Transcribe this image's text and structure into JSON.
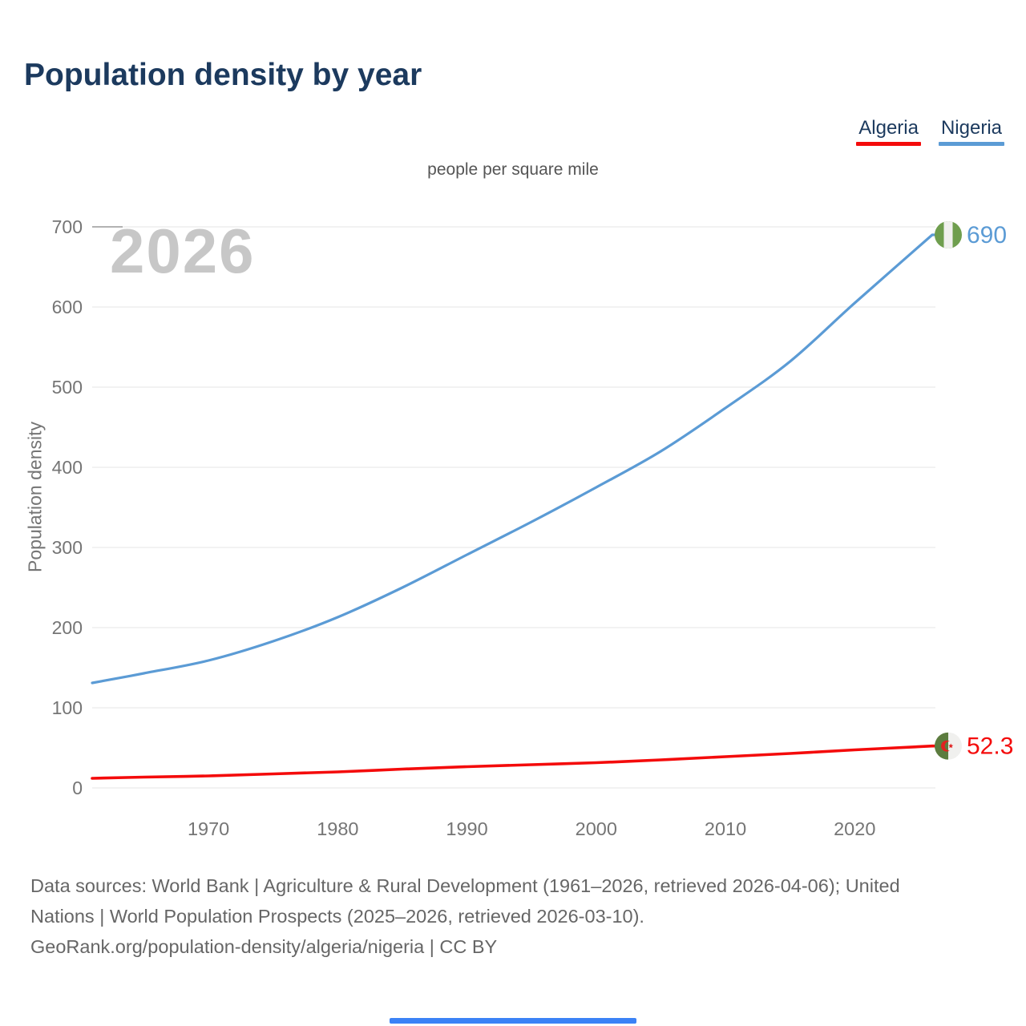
{
  "header": {
    "title": "Population density by year"
  },
  "legend": [
    {
      "label": "Algeria",
      "color": "#f40b0b"
    },
    {
      "label": "Nigeria",
      "color": "#5b9bd5"
    }
  ],
  "subtitle": "people per square mile",
  "watermark": "2026",
  "chart_data": {
    "type": "line",
    "title": "Population density by year",
    "subtitle": "people per square mile",
    "xlabel": "",
    "ylabel": "Population density",
    "xlim": [
      1961,
      2026
    ],
    "ylim": [
      0,
      700
    ],
    "yticks": [
      0,
      100,
      200,
      300,
      400,
      500,
      600,
      700
    ],
    "xticks": [
      1970,
      1980,
      1990,
      2000,
      2010,
      2020
    ],
    "grid": "horizontal",
    "legend_position": "top-right",
    "series": [
      {
        "name": "Nigeria",
        "color": "#5b9bd5",
        "end_label": "690",
        "end_value": 690,
        "flag": "nigeria",
        "x": [
          1961,
          1965,
          1970,
          1975,
          1980,
          1985,
          1990,
          1995,
          2000,
          2005,
          2010,
          2015,
          2020,
          2026
        ],
        "values": [
          131,
          143,
          159,
          183,
          213,
          250,
          291,
          332,
          375,
          420,
          474,
          532,
          605,
          690
        ]
      },
      {
        "name": "Algeria",
        "color": "#f40b0b",
        "end_label": "52.3",
        "end_value": 52.3,
        "flag": "algeria",
        "x": [
          1961,
          1965,
          1970,
          1975,
          1980,
          1985,
          1990,
          1995,
          2000,
          2005,
          2010,
          2015,
          2020,
          2026
        ],
        "values": [
          12,
          13.5,
          15,
          17.5,
          20,
          23.5,
          26.5,
          29,
          31.5,
          35,
          39,
          43,
          47.5,
          52.3
        ]
      }
    ],
    "flag_colors": {
      "nigeria_green": "#6f9e4e",
      "algeria_green": "#5c7c3f",
      "flag_white": "#f0f0ee",
      "algeria_red": "#e02121"
    }
  },
  "footer": {
    "line1": "Data sources: World Bank | Agriculture & Rural Development (1961–2026, retrieved 2026-04-06); United",
    "line2": "Nations | World Population Prospects (2025–2026, retrieved 2026-03-10).",
    "line3": "GeoRank.org/population-density/algeria/nigeria | CC BY"
  },
  "bottom_bar_color": "#3b82f6"
}
